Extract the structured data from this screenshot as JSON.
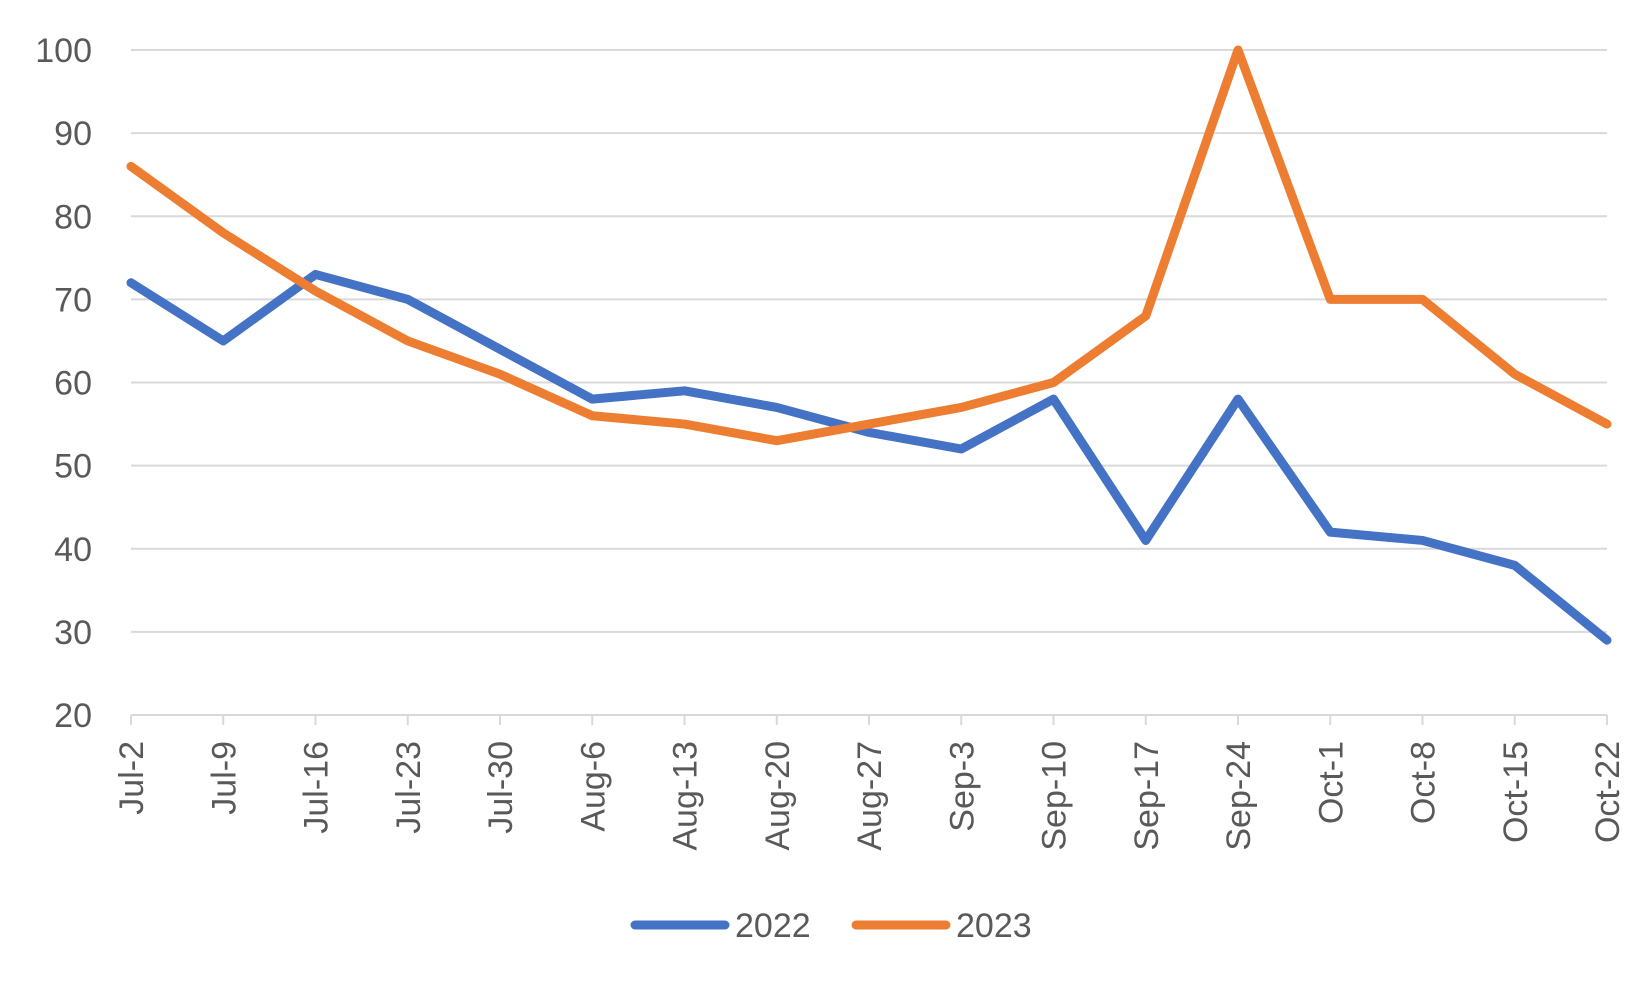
{
  "chart_data": {
    "type": "line",
    "title": "",
    "xlabel": "",
    "ylabel": "",
    "categories": [
      "Jul-2",
      "Jul-9",
      "Jul-16",
      "Jul-23",
      "Jul-30",
      "Aug-6",
      "Aug-13",
      "Aug-20",
      "Aug-27",
      "Sep-3",
      "Sep-10",
      "Sep-17",
      "Sep-24",
      "Oct-1",
      "Oct-8",
      "Oct-15",
      "Oct-22"
    ],
    "ylim": [
      20,
      100
    ],
    "yticks": [
      "20",
      "30",
      "40",
      "50",
      "60",
      "70",
      "80",
      "90",
      "100"
    ],
    "grid": "horizontal",
    "legend_position": "bottom",
    "series": [
      {
        "name": "2022",
        "color": "#4472C4",
        "values": [
          72,
          65,
          73,
          70,
          64,
          58,
          59,
          57,
          54,
          52,
          58,
          41,
          58,
          42,
          41,
          38,
          29
        ]
      },
      {
        "name": "2023",
        "color": "#ED7D31",
        "values": [
          86,
          78,
          71,
          65,
          61,
          56,
          55,
          53,
          55,
          57,
          60,
          68,
          100,
          70,
          70,
          61,
          55
        ]
      }
    ]
  }
}
